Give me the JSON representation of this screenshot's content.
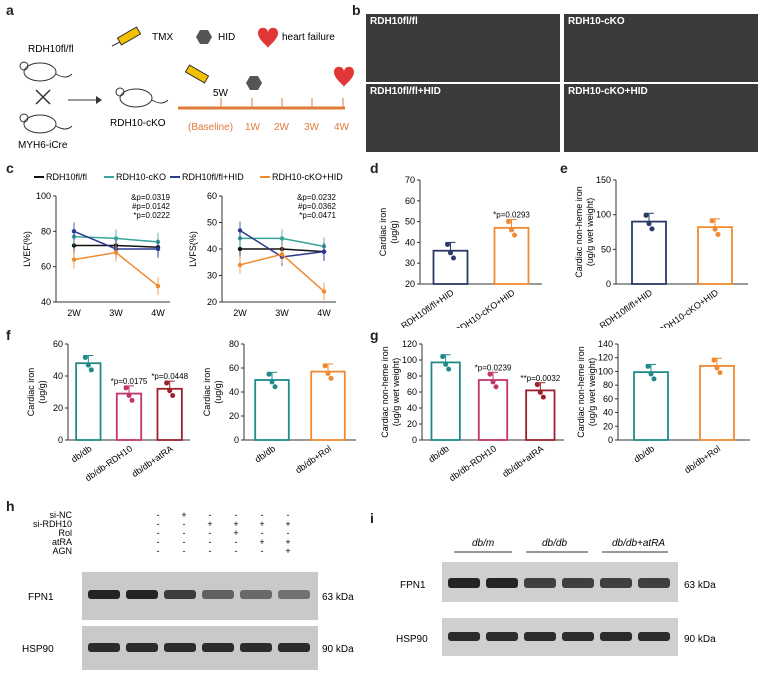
{
  "panels": [
    "a",
    "b",
    "c",
    "d",
    "e",
    "f",
    "g",
    "h",
    "i"
  ],
  "a": {
    "legend": [
      "TMX",
      "HID",
      "heart failure"
    ],
    "mouse_top": "RDH10fl/fl",
    "mouse_bottom": "MYH6-iCre",
    "mouse_result": "RDH10-cKO",
    "time_top": "5W",
    "time_baseline": "(Baseline)",
    "weeks": [
      "1W",
      "2W",
      "3W",
      "4W"
    ],
    "colors": {
      "timeline": "#e07b39",
      "tmx": "#f2c200",
      "hid": "#555555",
      "heart": "#e23636"
    }
  },
  "b": {
    "captions": [
      "RDH10fl/fl",
      "RDH10-cKO",
      "RDH10fl/fl+HID",
      "RDH10-cKO+HID"
    ]
  },
  "c": {
    "legend": [
      "RDH10fl/fl",
      "RDH10-cKO",
      "RDH10fl/fl+HID",
      "RDH10-cKO+HID"
    ],
    "colors": [
      "#111111",
      "#3aa39a",
      "#2b3990",
      "#f08a30"
    ],
    "lvef": {
      "ylabel": "LVEF(%)",
      "yticks": [
        "40",
        "60",
        "80",
        "100"
      ],
      "xticks": [
        "2W",
        "3W",
        "4W"
      ],
      "stats": [
        "&p=0.0319",
        "#p=0.0142",
        "*p=0.0222"
      ]
    },
    "lvfs": {
      "ylabel": "LVFS(%)",
      "yticks": [
        "20",
        "30",
        "40",
        "50",
        "60"
      ],
      "xticks": [
        "2W",
        "3W",
        "4W"
      ],
      "stats": [
        "&p=0.0232",
        "#p=0.0362",
        "*p=0.0471"
      ]
    }
  },
  "chart_data": [
    {
      "type": "line",
      "panel": "c-left",
      "ylabel": "LVEF(%)",
      "x": [
        "2W",
        "3W",
        "4W"
      ],
      "ylim": [
        40,
        100
      ],
      "series": [
        {
          "name": "RDH10fl/fl",
          "values": [
            72,
            72,
            71
          ]
        },
        {
          "name": "RDH10-cKO",
          "values": [
            77,
            76,
            74
          ]
        },
        {
          "name": "RDH10fl/fl+HID",
          "values": [
            80,
            70,
            70
          ]
        },
        {
          "name": "RDH10-cKO+HID",
          "values": [
            64,
            68,
            49
          ]
        }
      ]
    },
    {
      "type": "line",
      "panel": "c-right",
      "ylabel": "LVFS(%)",
      "x": [
        "2W",
        "3W",
        "4W"
      ],
      "ylim": [
        20,
        60
      ],
      "series": [
        {
          "name": "RDH10fl/fl",
          "values": [
            40,
            40,
            39
          ]
        },
        {
          "name": "RDH10-cKO",
          "values": [
            44,
            44,
            41
          ]
        },
        {
          "name": "RDH10fl/fl+HID",
          "values": [
            47,
            37,
            39
          ]
        },
        {
          "name": "RDH10-cKO+HID",
          "values": [
            34,
            38,
            24
          ]
        }
      ]
    },
    {
      "type": "bar",
      "panel": "d",
      "ylabel": "Cardiac iron (ug/g)",
      "categories": [
        "RDH10fl/fl+HID",
        "RDH10-cKO+HID"
      ],
      "values": [
        36,
        47
      ],
      "ylim": [
        20,
        70
      ],
      "annotation": "*p=0.0293"
    },
    {
      "type": "bar",
      "panel": "e",
      "ylabel": "Cardiac non-heme iron (ug/g wet weight)",
      "categories": [
        "RDH10fl/fl+HID",
        "RDH10-cKO+HID"
      ],
      "values": [
        90,
        82
      ],
      "ylim": [
        0,
        150
      ]
    },
    {
      "type": "bar",
      "panel": "f-left",
      "ylabel": "Cardiac iron (ug/g)",
      "categories": [
        "db/db",
        "db/db-RDH10",
        "db/db+atRA"
      ],
      "values": [
        48,
        29,
        32
      ],
      "ylim": [
        0,
        60
      ],
      "annotations": [
        "",
        "*p=0.0175",
        "*p=0.0448"
      ]
    },
    {
      "type": "bar",
      "panel": "f-right",
      "ylabel": "Cardiac iron (ug/g)",
      "categories": [
        "db/db",
        "db/db+Rol"
      ],
      "values": [
        50,
        57
      ],
      "ylim": [
        0,
        80
      ]
    },
    {
      "type": "bar",
      "panel": "g-left",
      "ylabel": "Cardiac non-heme iron (ug/g wet weight)",
      "categories": [
        "db/db",
        "db/db-RDH10",
        "db/db+atRA"
      ],
      "values": [
        97,
        75,
        62
      ],
      "ylim": [
        0,
        120
      ],
      "annotations": [
        "",
        "*p=0.0239",
        "**p=0.0032"
      ]
    },
    {
      "type": "bar",
      "panel": "g-right",
      "ylabel": "Cardiac non-heme iron (ug/g wet weight)",
      "categories": [
        "db/db",
        "db/db+Rol"
      ],
      "values": [
        99,
        108
      ],
      "ylim": [
        0,
        140
      ]
    }
  ],
  "bars_yticks": {
    "d": [
      "20",
      "30",
      "40",
      "50",
      "60",
      "70"
    ],
    "e": [
      "0",
      "50",
      "100",
      "150"
    ],
    "f_left": [
      "0",
      "20",
      "40",
      "60"
    ],
    "f_right": [
      "0",
      "20",
      "40",
      "60",
      "80"
    ],
    "g_left": [
      "0",
      "20",
      "40",
      "60",
      "80",
      "100",
      "120"
    ],
    "g_right": [
      "0",
      "20",
      "40",
      "60",
      "80",
      "100",
      "120",
      "140"
    ]
  },
  "bar_colors": {
    "navy": "#2b3a67",
    "orange": "#f08a30",
    "teal": "#1f8a8a",
    "pink": "#c2366e",
    "darkred": "#9e1f2c"
  },
  "h": {
    "row_labels": [
      "si-NC",
      "si-RDH10",
      "Rol",
      "atRA",
      "AGN"
    ],
    "grid": [
      [
        "-",
        "+",
        "-",
        "-",
        "-",
        "-"
      ],
      [
        "-",
        "-",
        "+",
        "+",
        "+",
        "+"
      ],
      [
        "-",
        "-",
        "-",
        "+",
        "-",
        "-"
      ],
      [
        "-",
        "-",
        "-",
        "-",
        "+",
        "+"
      ],
      [
        "-",
        "-",
        "-",
        "-",
        "-",
        "+"
      ]
    ],
    "blots": [
      {
        "name": "FPN1",
        "kda": "63 kDa"
      },
      {
        "name": "HSP90",
        "kda": "90 kDa"
      }
    ]
  },
  "i": {
    "groups": [
      "db/m",
      "db/db",
      "db/db+atRA"
    ],
    "blots": [
      {
        "name": "FPN1",
        "kda": "63 kDa"
      },
      {
        "name": "HSP90",
        "kda": "90 kDa"
      }
    ]
  }
}
